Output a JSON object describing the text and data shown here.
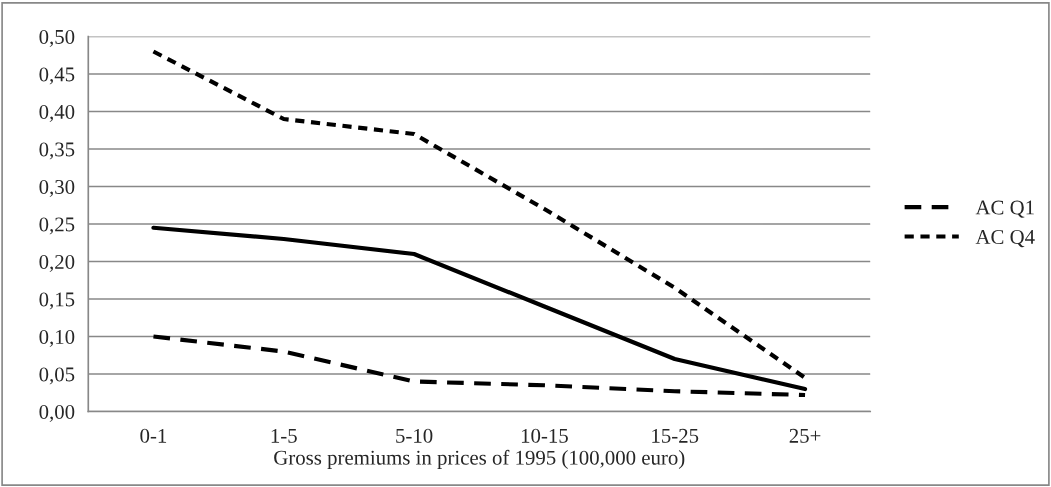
{
  "chart_data": {
    "type": "line",
    "xlabel": "Gross premiums in prices of 1995 (100,000 euro)",
    "categories": [
      "0-1",
      "1-5",
      "5-10",
      "10-15",
      "15-25",
      "25+"
    ],
    "series": [
      {
        "name": "AC Q1",
        "color": "#000000",
        "line_style": "dashed",
        "values": [
          0.1,
          0.08,
          0.04,
          0.035,
          0.027,
          0.022
        ]
      },
      {
        "name": "AC Q4",
        "color": "#000000",
        "line_style": "dotted",
        "values": [
          0.48,
          0.39,
          0.37,
          0.27,
          0.165,
          0.045
        ]
      },
      {
        "color": "#000000",
        "line_style": "solid",
        "values": [
          0.245,
          0.23,
          0.21,
          0.14,
          0.07,
          0.03
        ]
      }
    ],
    "ylim": [
      0,
      0.5
    ],
    "yticks": [
      {
        "value": 0,
        "label": "0,00"
      },
      {
        "value": 0.05,
        "label": "0,05"
      },
      {
        "value": 0.1,
        "label": "0,10"
      },
      {
        "value": 0.15,
        "label": "0,15"
      },
      {
        "value": 0.2,
        "label": "0,20"
      },
      {
        "value": 0.25,
        "label": "0,25"
      },
      {
        "value": 0.3,
        "label": "0,30"
      },
      {
        "value": 0.35,
        "label": "0,35"
      },
      {
        "value": 0.4,
        "label": "0,40"
      },
      {
        "value": 0.45,
        "label": "0,45"
      },
      {
        "value": 0.5,
        "label": "0,50"
      }
    ],
    "grid": "y",
    "legend": "right"
  }
}
